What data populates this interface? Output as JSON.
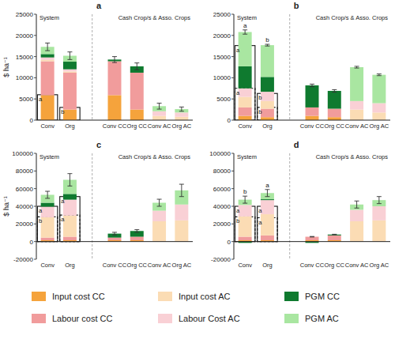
{
  "chart_data": [
    {
      "type": "bar",
      "title": "a",
      "ylabel": "$ ha⁻¹",
      "stacked": true,
      "legend": "bottom",
      "categories": [
        "Conv",
        "Org",
        null,
        "Conv CC",
        "Org CC",
        "Conv AC",
        "Org AC"
      ],
      "annotations": [
        "System",
        "Cash Crop/s & Asso. Crops"
      ],
      "ylim": [
        0,
        25000
      ],
      "yticks": [
        0,
        5000,
        10000,
        15000,
        20000,
        25000
      ],
      "series": [
        {
          "name": "Input cost CC",
          "color": "#f5a33c",
          "values": [
            5900,
            2500,
            null,
            5900,
            2500,
            0,
            0
          ]
        },
        {
          "name": "Labour cost CC",
          "color": "#f19c9c",
          "values": [
            8000,
            8700,
            null,
            8000,
            8700,
            0,
            0
          ]
        },
        {
          "name": "Input cost AC",
          "color": "#fbdcb4",
          "values": [
            300,
            300,
            null,
            0,
            0,
            1000,
            800
          ]
        },
        {
          "name": "Labour Cost AC",
          "color": "#f9d0d5",
          "values": [
            600,
            500,
            null,
            0,
            0,
            1100,
            1000
          ]
        },
        {
          "name": "PGM CC",
          "color": "#0f7a2f",
          "values": [
            800,
            1800,
            null,
            400,
            1500,
            0,
            0
          ]
        },
        {
          "name": "PGM AC",
          "color": "#a9e6a1",
          "values": [
            1700,
            1400,
            null,
            0,
            0,
            1200,
            800
          ]
        }
      ],
      "errors": [
        900,
        900,
        null,
        700,
        800,
        700,
        500
      ],
      "outlines": [
        {
          "line_style": "solid",
          "values": [
            6000,
            3000
          ],
          "letters": [
            "a",
            "b"
          ]
        }
      ]
    },
    {
      "type": "bar",
      "title": "b",
      "stacked": true,
      "categories": [
        "Conv",
        "Org",
        null,
        "Conv CC",
        "Org CC",
        "Conv AC",
        "Org AC"
      ],
      "annotations": [
        "System",
        "Cash Crop/s & Asso. Crops"
      ],
      "ylim": [
        0,
        25000
      ],
      "yticks": [
        0,
        5000,
        10000,
        15000,
        20000,
        25000
      ],
      "series": [
        {
          "color": "#f5a33c",
          "values": [
            1000,
            700,
            null,
            1000,
            700,
            0,
            0
          ]
        },
        {
          "color": "#f19c9c",
          "values": [
            2000,
            2000,
            null,
            2000,
            2000,
            0,
            0
          ]
        },
        {
          "color": "#fbdcb4",
          "values": [
            2500,
            1800,
            null,
            0,
            0,
            2500,
            1800
          ]
        },
        {
          "color": "#f9d0d5",
          "values": [
            2000,
            2200,
            null,
            0,
            0,
            2000,
            2200
          ]
        },
        {
          "color": "#0f7a2f",
          "values": [
            5200,
            3500,
            null,
            5200,
            4200,
            0,
            0
          ]
        },
        {
          "color": "#a9e6a1",
          "values": [
            8100,
            7500,
            null,
            0,
            0,
            8000,
            6700
          ]
        }
      ],
      "errors": [
        500,
        200,
        null,
        300,
        300,
        200,
        200
      ],
      "system_letters": [
        "a",
        "b"
      ],
      "outlines": [
        {
          "line_style": "solid",
          "values": [
            17600,
            6300
          ],
          "letters": [
            "a",
            "b"
          ]
        },
        {
          "line_style": "dashed",
          "values": [
            7500,
            3000
          ],
          "letters": [
            "a",
            "b"
          ]
        }
      ]
    },
    {
      "type": "bar",
      "title": "c",
      "ylabel": "$ ha⁻¹",
      "stacked": true,
      "categories": [
        "Conv",
        "Org",
        null,
        "Conv CC",
        "Org CC",
        "Conv AC",
        "Org AC"
      ],
      "annotations": [
        "System",
        "Cash Crop/s & Asso. Crops"
      ],
      "ylim": [
        -20000,
        100000
      ],
      "yticks": [
        -20000,
        0,
        20000,
        40000,
        60000,
        80000,
        100000
      ],
      "series": [
        {
          "color": "#f5a33c",
          "values": [
            1500,
            1500,
            null,
            1500,
            1500,
            0,
            0
          ]
        },
        {
          "color": "#f19c9c",
          "values": [
            3000,
            4000,
            null,
            3000,
            4000,
            0,
            0
          ]
        },
        {
          "color": "#fbdcb4",
          "values": [
            23000,
            24000,
            null,
            0,
            0,
            23000,
            24000
          ]
        },
        {
          "color": "#f9d0d5",
          "values": [
            12000,
            18000,
            null,
            0,
            0,
            12000,
            18000
          ]
        },
        {
          "color": "#0f7a2f",
          "values": [
            4500,
            6500,
            null,
            4500,
            6500,
            0,
            0
          ]
        },
        {
          "color": "#a9e6a1",
          "values": [
            9000,
            16000,
            null,
            0,
            0,
            9000,
            16000
          ]
        }
      ],
      "errors": [
        4000,
        7000,
        null,
        1500,
        1500,
        4000,
        7000
      ],
      "outlines": [
        {
          "line_style": "solid",
          "values": [
            40000,
            51000
          ],
          "letters": [
            "a",
            "a"
          ]
        },
        {
          "line_style": "dashed",
          "values": [
            28000,
            30000
          ],
          "letters": [
            "b",
            "a"
          ]
        }
      ]
    },
    {
      "type": "bar",
      "title": "d",
      "stacked": true,
      "categories": [
        "Conv",
        "Org",
        null,
        "Conv CC",
        "Org CC",
        "Conv AC",
        "Org AC"
      ],
      "annotations": [
        "System",
        "Cash Crop/s & Asso. Crops"
      ],
      "ylim": [
        -20000,
        100000
      ],
      "yticks": [
        -20000,
        0,
        20000,
        40000,
        60000,
        80000,
        100000
      ],
      "series": [
        {
          "color": "#f5a33c",
          "values": [
            1500,
            1500,
            null,
            1500,
            1500,
            0,
            0
          ]
        },
        {
          "color": "#f19c9c",
          "values": [
            4000,
            5500,
            null,
            4000,
            5500,
            0,
            0
          ]
        },
        {
          "color": "#fbdcb4",
          "values": [
            23000,
            24000,
            null,
            0,
            0,
            23000,
            24000
          ]
        },
        {
          "color": "#f9d0d5",
          "values": [
            13000,
            16000,
            null,
            0,
            0,
            13000,
            16000
          ]
        },
        {
          "color": "#0f7a2f",
          "values": [
            -1500,
            1000,
            null,
            -1500,
            1000,
            0,
            0
          ]
        },
        {
          "color": "#a9e6a1",
          "values": [
            6000,
            7000,
            null,
            0,
            0,
            6000,
            7000
          ]
        }
      ],
      "errors": [
        4000,
        4000,
        null,
        300,
        300,
        4000,
        4000
      ],
      "system_letters": [
        "b",
        "a"
      ],
      "outlines": [
        {
          "line_style": "solid",
          "values": [
            40000,
            40000
          ],
          "letters": [
            "a",
            "a"
          ]
        },
        {
          "line_style": "dashed",
          "values": [
            28000,
            27000
          ],
          "letters": [
            "b",
            "a"
          ]
        }
      ]
    }
  ]
}
